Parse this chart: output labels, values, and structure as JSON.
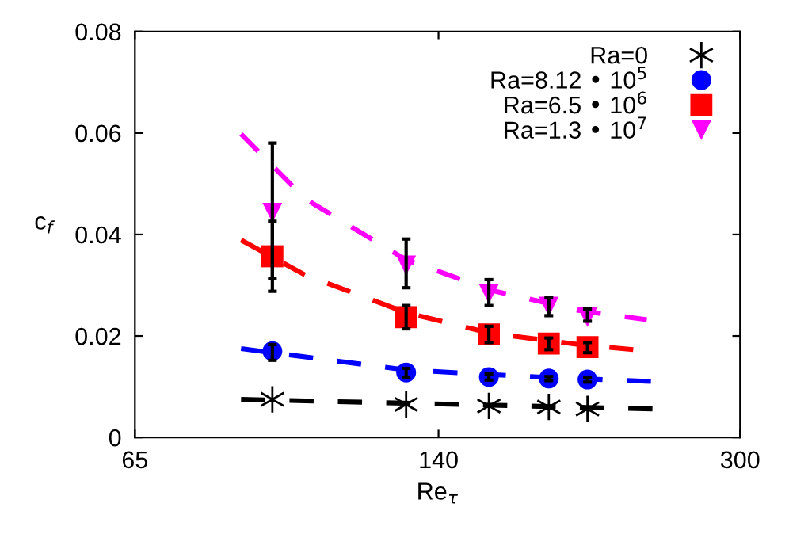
{
  "chart_data": {
    "type": "scatter",
    "xlabel": "Re$_{τ}$",
    "ylabel": "c$_{f}$",
    "log": "x",
    "xlim": [
      65,
      300
    ],
    "xticks": [
      65,
      140,
      300
    ],
    "ylim": [
      0,
      0.08
    ],
    "yticks": [
      0,
      0.02,
      0.04,
      0.06,
      0.08
    ],
    "grid": false,
    "legend": "top right",
    "series": [
      {
        "name": "Ra=0",
        "color": "#000000",
        "marker": "cross",
        "x": [
          92,
          129,
          159,
          185,
          204
        ],
        "values": [
          0.0075,
          0.0065,
          0.0062,
          0.006,
          0.0056
        ]
      },
      {
        "name": "Ra=8.12 • 10$^{5}$",
        "color": "#0000ff",
        "marker": "circle",
        "x": [
          92,
          129,
          159,
          185,
          204
        ],
        "values": [
          0.017,
          0.0128,
          0.0119,
          0.0116,
          0.0114
        ],
        "errors": [
          [
            0.0152,
            0.0183
          ],
          [
            0.0118,
            0.0136
          ],
          [
            0.0113,
            0.0125
          ],
          [
            0.0112,
            0.012
          ],
          [
            0.0109,
            0.0118
          ]
        ]
      },
      {
        "name": "Ra=6.5 • 10$^{6}$",
        "color": "#ff0000",
        "marker": "square",
        "x": [
          92,
          129,
          159,
          185,
          204
        ],
        "values": [
          0.0357,
          0.0237,
          0.0203,
          0.0185,
          0.0178
        ],
        "errors": [
          [
            0.0288,
            0.0426
          ],
          [
            0.0214,
            0.026
          ],
          [
            0.0187,
            0.0219
          ],
          [
            0.0173,
            0.0196
          ],
          [
            0.0167,
            0.0187
          ]
        ]
      },
      {
        "name": "Ra=1.3 • 10$^{7}$",
        "color": "#ff00ff",
        "marker": "triangle",
        "x": [
          92,
          129,
          159,
          185,
          204
        ],
        "values": [
          0.0443,
          0.0339,
          0.0283,
          0.0258,
          0.0237
        ],
        "errors": [
          [
            0.0313,
            0.058
          ],
          [
            0.0295,
            0.0391
          ],
          [
            0.026,
            0.0311
          ],
          [
            0.024,
            0.0275
          ],
          [
            0.0229,
            0.0253
          ]
        ]
      },
      {
        "type": "line",
        "line_style": "dashed",
        "color": "#000000",
        "x": [
          85,
          242
        ],
        "values": [
          0.0075,
          0.0056
        ]
      },
      {
        "type": "line",
        "line_style": "dashed",
        "color": "#0000ff",
        "x": [
          85,
          129,
          180,
          242
        ],
        "values": [
          0.0175,
          0.0133,
          0.0119,
          0.011
        ]
      },
      {
        "type": "line",
        "line_style": "dashed",
        "color": "#ff0000",
        "x": [
          85,
          100,
          129,
          160,
          200,
          229
        ],
        "values": [
          0.0389,
          0.032,
          0.0246,
          0.0205,
          0.0183,
          0.0173
        ]
      },
      {
        "type": "line",
        "line_style": "dashed",
        "color": "#ff00ff",
        "x": [
          85,
          100,
          129,
          160,
          200,
          237
        ],
        "values": [
          0.0598,
          0.047,
          0.035,
          0.029,
          0.025,
          0.0232
        ]
      }
    ]
  }
}
